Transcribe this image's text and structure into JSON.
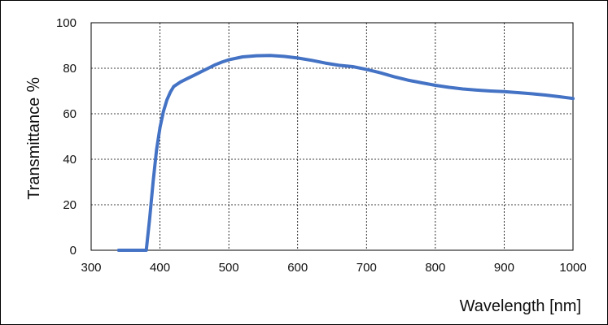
{
  "chart_data": {
    "type": "line",
    "title": "",
    "xlabel": "Wavelength [nm]",
    "ylabel": "Transmittance ％",
    "xlim": [
      300,
      1000
    ],
    "ylim": [
      0,
      100
    ],
    "xticks": [
      300,
      400,
      500,
      600,
      700,
      800,
      900,
      1000
    ],
    "yticks": [
      0,
      20,
      40,
      60,
      80,
      100
    ],
    "grid": "dashed",
    "legend": "none",
    "series": [
      {
        "color": "#4472c4",
        "points": [
          [
            340,
            0
          ],
          [
            360,
            0
          ],
          [
            380,
            0
          ],
          [
            385,
            14
          ],
          [
            390,
            30
          ],
          [
            395,
            44
          ],
          [
            400,
            54
          ],
          [
            405,
            61
          ],
          [
            410,
            66
          ],
          [
            415,
            69.5
          ],
          [
            420,
            72
          ],
          [
            430,
            74
          ],
          [
            440,
            75.5
          ],
          [
            450,
            77
          ],
          [
            460,
            78.5
          ],
          [
            470,
            80
          ],
          [
            480,
            81.5
          ],
          [
            490,
            82.7
          ],
          [
            500,
            83.7
          ],
          [
            520,
            85
          ],
          [
            540,
            85.5
          ],
          [
            560,
            85.6
          ],
          [
            580,
            85.2
          ],
          [
            600,
            84.5
          ],
          [
            620,
            83.5
          ],
          [
            640,
            82.3
          ],
          [
            660,
            81.3
          ],
          [
            680,
            80.7
          ],
          [
            700,
            79.5
          ],
          [
            720,
            78
          ],
          [
            740,
            76.3
          ],
          [
            760,
            74.8
          ],
          [
            780,
            73.6
          ],
          [
            800,
            72.5
          ],
          [
            820,
            71.6
          ],
          [
            840,
            70.9
          ],
          [
            860,
            70.4
          ],
          [
            880,
            70
          ],
          [
            900,
            69.7
          ],
          [
            920,
            69.3
          ],
          [
            940,
            68.8
          ],
          [
            960,
            68.2
          ],
          [
            980,
            67.5
          ],
          [
            1000,
            66.7
          ]
        ]
      }
    ]
  }
}
